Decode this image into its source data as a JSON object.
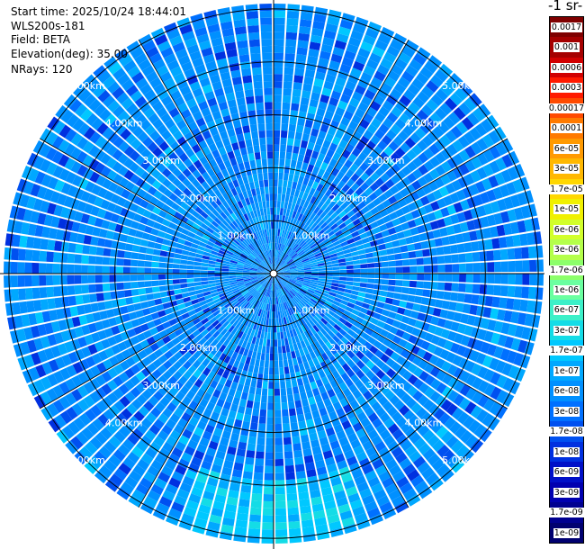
{
  "header": {
    "start_time": "Start time: 2025/10/24 18:44:01",
    "instrument": "WLS200s-181",
    "field": "Field: BETA",
    "elevation": "Elevation(deg): 35.00",
    "nrays": "NRays: 120"
  },
  "colorbar": {
    "title": "-1 sr-",
    "labels": [
      "0.0017",
      "0.001",
      "0.0006",
      "0.0003",
      "0.00017",
      "0.0001",
      "6e-05",
      "3e-05",
      "1.7e-05",
      "1e-05",
      "6e-06",
      "3e-06",
      "1.7e-06",
      "1e-06",
      "6e-07",
      "3e-07",
      "1.7e-07",
      "1e-07",
      "6e-08",
      "3e-08",
      "1.7e-08",
      "1e-08",
      "6e-09",
      "3e-09",
      "1.7e-09",
      "1e-09"
    ],
    "colors": [
      "#7f0000",
      "#a50000",
      "#d10000",
      "#ff1a00",
      "#ff4a00",
      "#ff7a00",
      "#ff9a00",
      "#ffb800",
      "#ffd700",
      "#f0f000",
      "#d2ff2b",
      "#b4ff4a",
      "#8cff6a",
      "#6affa0",
      "#3cf0c8",
      "#14dce6",
      "#00c8ff",
      "#00a8ff",
      "#0090ff",
      "#0070ff",
      "#0050f0",
      "#0030e0",
      "#0010c8",
      "#0000b0",
      "#000090",
      "#000070"
    ]
  },
  "chart_data": {
    "type": "heatmap",
    "projection": "polar (PPI scan)",
    "field": "BETA",
    "elevation_deg": 35.0,
    "n_rays": 120,
    "range_ring_labels": [
      "1.00km",
      "2.00km",
      "3.00km",
      "4.00km",
      "5.00km"
    ],
    "range_rings_km": [
      1,
      2,
      3,
      4,
      5
    ],
    "max_range_km": 5.1,
    "dominant_value": "6e-08",
    "enhanced_region": {
      "azimuth_deg": [
        160,
        200
      ],
      "range_km": [
        4.0,
        5.1
      ],
      "value": "1.7e-07"
    }
  }
}
